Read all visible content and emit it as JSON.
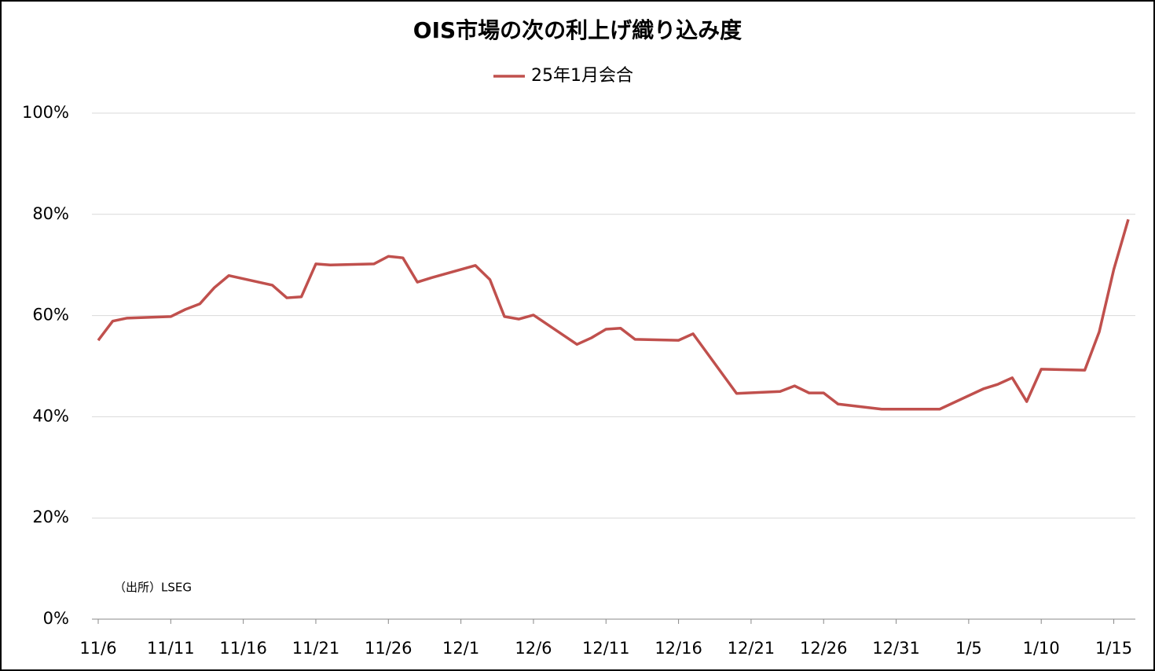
{
  "chart_data": {
    "type": "line",
    "title": "OIS市場の次の利上げ織り込み度",
    "annotation": "（出所）LSEG",
    "x": [
      "11/6",
      "11/7",
      "11/8",
      "11/11",
      "11/12",
      "11/13",
      "11/14",
      "11/15",
      "11/18",
      "11/19",
      "11/20",
      "11/21",
      "11/22",
      "11/25",
      "11/26",
      "11/27",
      "11/28",
      "11/29",
      "12/2",
      "12/3",
      "12/4",
      "12/5",
      "12/6",
      "12/9",
      "12/10",
      "12/11",
      "12/12",
      "12/13",
      "12/16",
      "12/17",
      "12/20",
      "12/23",
      "12/24",
      "12/25",
      "12/26",
      "12/27",
      "12/30",
      "1/3",
      "1/6",
      "1/7",
      "1/8",
      "1/9",
      "1/10",
      "1/13",
      "1/14",
      "1/15",
      "1/16"
    ],
    "series": [
      {
        "name": "25年1月会合",
        "color": "#c0504d",
        "values": [
          55.1,
          58.9,
          59.5,
          59.8,
          61.2,
          62.3,
          65.5,
          67.9,
          66.0,
          63.5,
          63.7,
          70.2,
          70.0,
          70.2,
          71.7,
          71.4,
          66.6,
          67.5,
          69.9,
          67.1,
          59.8,
          59.3,
          60.1,
          54.3,
          55.6,
          57.3,
          57.5,
          55.3,
          55.1,
          56.4,
          44.6,
          45.0,
          46.1,
          44.7,
          44.7,
          42.5,
          41.5,
          41.5,
          45.5,
          46.4,
          47.7,
          43.0,
          49.4,
          49.2,
          56.8,
          69.1,
          79.0
        ]
      }
    ],
    "xlim": [
      "11/6",
      "1/16"
    ],
    "xticks": [
      "11/6",
      "11/11",
      "11/16",
      "11/21",
      "11/26",
      "12/1",
      "12/6",
      "12/11",
      "12/16",
      "12/21",
      "12/26",
      "12/31",
      "1/5",
      "1/10",
      "1/15"
    ],
    "ylim": [
      0,
      100
    ],
    "yticks": [
      {
        "value": 0,
        "label": "0%"
      },
      {
        "value": 20,
        "label": "20%"
      },
      {
        "value": 40,
        "label": "40%"
      },
      {
        "value": 60,
        "label": "60%"
      },
      {
        "value": 80,
        "label": "80%"
      },
      {
        "value": 100,
        "label": "100%"
      }
    ],
    "grid": true,
    "legend": "top"
  }
}
